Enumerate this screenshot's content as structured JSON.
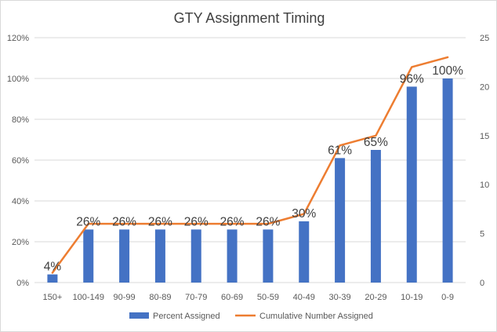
{
  "colors": {
    "bar": "#4472C4",
    "line": "#ED7D31",
    "grid": "#d9d9d9"
  },
  "chart_data": {
    "type": "bar",
    "title": "GTY Assignment Timing",
    "categories": [
      "150+",
      "100-149",
      "90-99",
      "80-89",
      "70-79",
      "60-69",
      "50-59",
      "40-49",
      "30-39",
      "20-29",
      "10-19",
      "0-9"
    ],
    "series": [
      {
        "name": "Percent Assigned",
        "type": "bar",
        "axis": "left",
        "values": [
          4,
          26,
          26,
          26,
          26,
          26,
          26,
          30,
          61,
          65,
          96,
          100
        ],
        "data_labels": [
          "4%",
          "26%",
          "26%",
          "26%",
          "26%",
          "26%",
          "26%",
          "30%",
          "61%",
          "65%",
          "96%",
          "100%"
        ]
      },
      {
        "name": "Cumulative Number Assigned",
        "type": "line",
        "axis": "right",
        "values": [
          1,
          6,
          6,
          6,
          6,
          6,
          6,
          7,
          14,
          15,
          22,
          23
        ]
      }
    ],
    "y_left": {
      "ylim": [
        0,
        120
      ],
      "ticks": [
        "0%",
        "20%",
        "40%",
        "60%",
        "80%",
        "100%",
        "120%"
      ]
    },
    "y_right": {
      "ylim": [
        0,
        25
      ],
      "ticks": [
        "0",
        "5",
        "10",
        "15",
        "20",
        "25"
      ]
    },
    "grid": true,
    "legend_position": "bottom"
  }
}
